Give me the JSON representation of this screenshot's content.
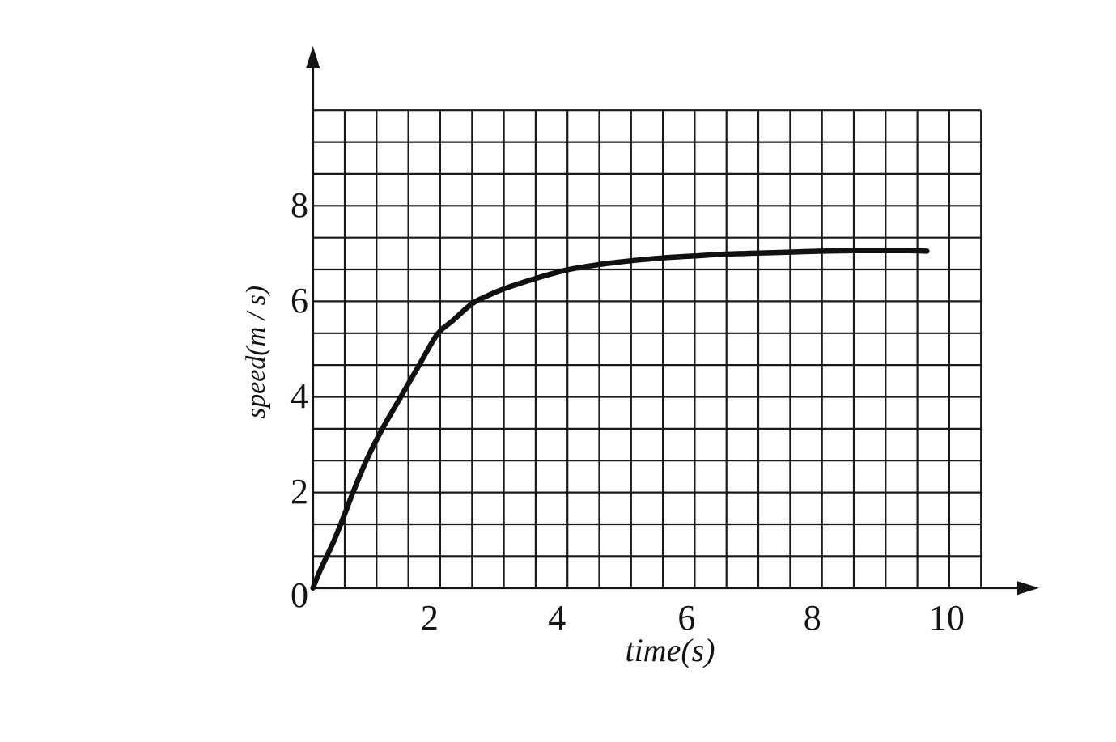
{
  "figure": {
    "background": "#ffffff",
    "ink_color": "#141414"
  },
  "chart_data": {
    "type": "line",
    "title": "",
    "xlabel": "time(s)",
    "ylabel": "speed(m / s)",
    "xlim": [
      0,
      10.5
    ],
    "ylim": [
      0,
      10
    ],
    "grid": "on",
    "x_grid_step": 0.5,
    "y_grid_step": 0.6667,
    "x_ticks": {
      "values": [
        2,
        4,
        6,
        8,
        10
      ],
      "labels": [
        "2",
        "4",
        "6",
        "8",
        "10"
      ]
    },
    "y_ticks": {
      "values": [
        2,
        4,
        6,
        8
      ],
      "labels": [
        "2",
        "4",
        "6",
        "8"
      ]
    },
    "origin_label": "0",
    "legend": "none",
    "axis_arrows": true,
    "grid_color": "#1a1a1a",
    "axis_color": "#141414",
    "curve_color": "#111111",
    "series": [
      {
        "name": "speed",
        "points": [
          [
            0,
            0
          ],
          [
            0.1,
            0.33
          ],
          [
            0.22,
            0.67
          ],
          [
            0.35,
            1.05
          ],
          [
            0.5,
            1.55
          ],
          [
            0.63,
            2.0
          ],
          [
            0.84,
            2.67
          ],
          [
            1.09,
            3.33
          ],
          [
            1.38,
            4.0
          ],
          [
            1.65,
            4.62
          ],
          [
            1.95,
            5.3
          ],
          [
            2.2,
            5.6
          ],
          [
            2.5,
            5.95
          ],
          [
            2.75,
            6.12
          ],
          [
            3.0,
            6.26
          ],
          [
            3.5,
            6.48
          ],
          [
            4.0,
            6.66
          ],
          [
            4.5,
            6.77
          ],
          [
            5.0,
            6.85
          ],
          [
            5.5,
            6.91
          ],
          [
            6.0,
            6.95
          ],
          [
            6.5,
            6.99
          ],
          [
            7.0,
            7.01
          ],
          [
            7.5,
            7.03
          ],
          [
            8.0,
            7.05
          ],
          [
            8.5,
            7.06
          ],
          [
            9.0,
            7.06
          ],
          [
            9.35,
            7.06
          ],
          [
            9.65,
            7.05
          ]
        ]
      }
    ]
  }
}
